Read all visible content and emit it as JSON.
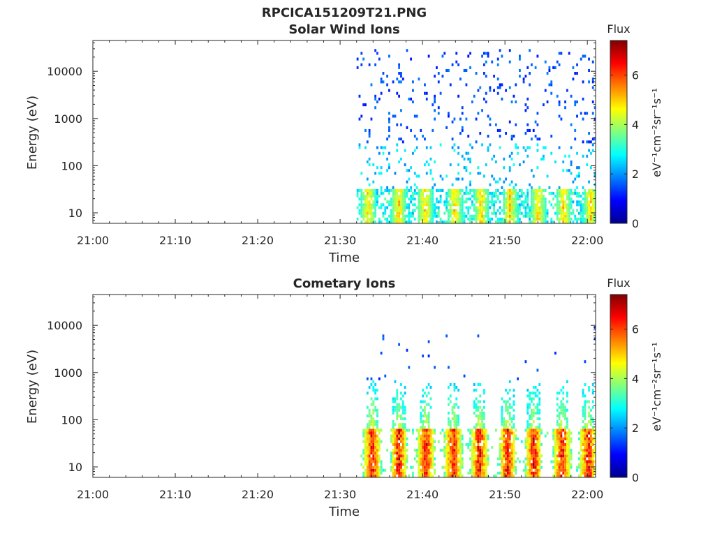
{
  "figure_title": "RPCICA151209T21.PNG",
  "colorbar_colors": [
    "#00008f",
    "#0000ff",
    "#0080ff",
    "#00ffff",
    "#80ff80",
    "#ffff00",
    "#ff8000",
    "#ff0000",
    "#800000"
  ],
  "chart_data": [
    {
      "type": "heatmap",
      "title": "Solar Wind Ions",
      "xlabel": "Time",
      "ylabel": "Energy (eV)",
      "x_ticks": [
        "21:00",
        "21:10",
        "21:20",
        "21:30",
        "21:40",
        "21:50",
        "22:00"
      ],
      "xlim": [
        "21:00",
        "22:01"
      ],
      "y_scale": "log",
      "y_ticks": [
        "10",
        "100",
        "1000",
        "10000"
      ],
      "ylim": [
        6,
        45000
      ],
      "colorbar_label": "Flux",
      "colorbar_units": "eV⁻¹cm⁻²sr⁻¹s⁻¹",
      "colorbar_ticks": [
        "0",
        "2",
        "4",
        "6"
      ],
      "clim": [
        0,
        7.4
      ],
      "data_start": "21:32",
      "data_end": "22:01",
      "low_energy_bursts_min": [
        33.3,
        37,
        40.2,
        43.8,
        47,
        50.5,
        53.9,
        57,
        60.3
      ]
    },
    {
      "type": "heatmap",
      "title": "Cometary Ions",
      "xlabel": "Time",
      "ylabel": "Energy (eV)",
      "x_ticks": [
        "21:00",
        "21:10",
        "21:20",
        "21:30",
        "21:40",
        "21:50",
        "22:00"
      ],
      "xlim": [
        "21:00",
        "22:01"
      ],
      "y_scale": "log",
      "y_ticks": [
        "10",
        "100",
        "1000",
        "10000"
      ],
      "ylim": [
        6,
        45000
      ],
      "colorbar_label": "Flux",
      "colorbar_units": "eV⁻¹cm⁻²sr⁻¹s⁻¹",
      "colorbar_ticks": [
        "0",
        "2",
        "4",
        "6"
      ],
      "clim": [
        0,
        7.4
      ],
      "data_start": "21:32",
      "data_end": "22:01",
      "low_energy_bursts_min": [
        33.8,
        37,
        40.3,
        43.6,
        46.8,
        50.2,
        53.4,
        56.8,
        60
      ]
    }
  ]
}
